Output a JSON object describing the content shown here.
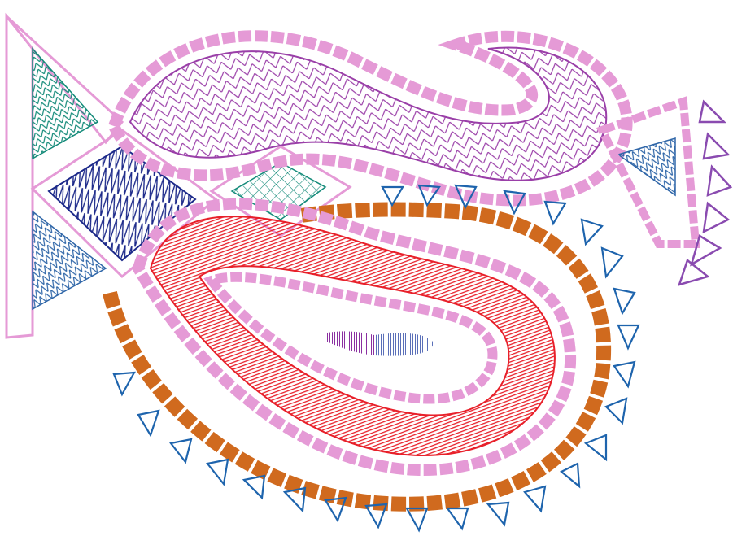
{
  "design": {
    "subject": "paisley-embroidery-pattern",
    "palette": {
      "pink_border": "#e59ad6",
      "purple": "#9a3fa8",
      "teal": "#138a79",
      "navy": "#1d2a8a",
      "steel_blue": "#2f66a8",
      "red": "#e8202a",
      "orange": "#d06a1e",
      "blue_triangles": "#1e64ad",
      "violet_triangles": "#8a4bb0",
      "slate_blue": "#5a6fb8"
    }
  }
}
